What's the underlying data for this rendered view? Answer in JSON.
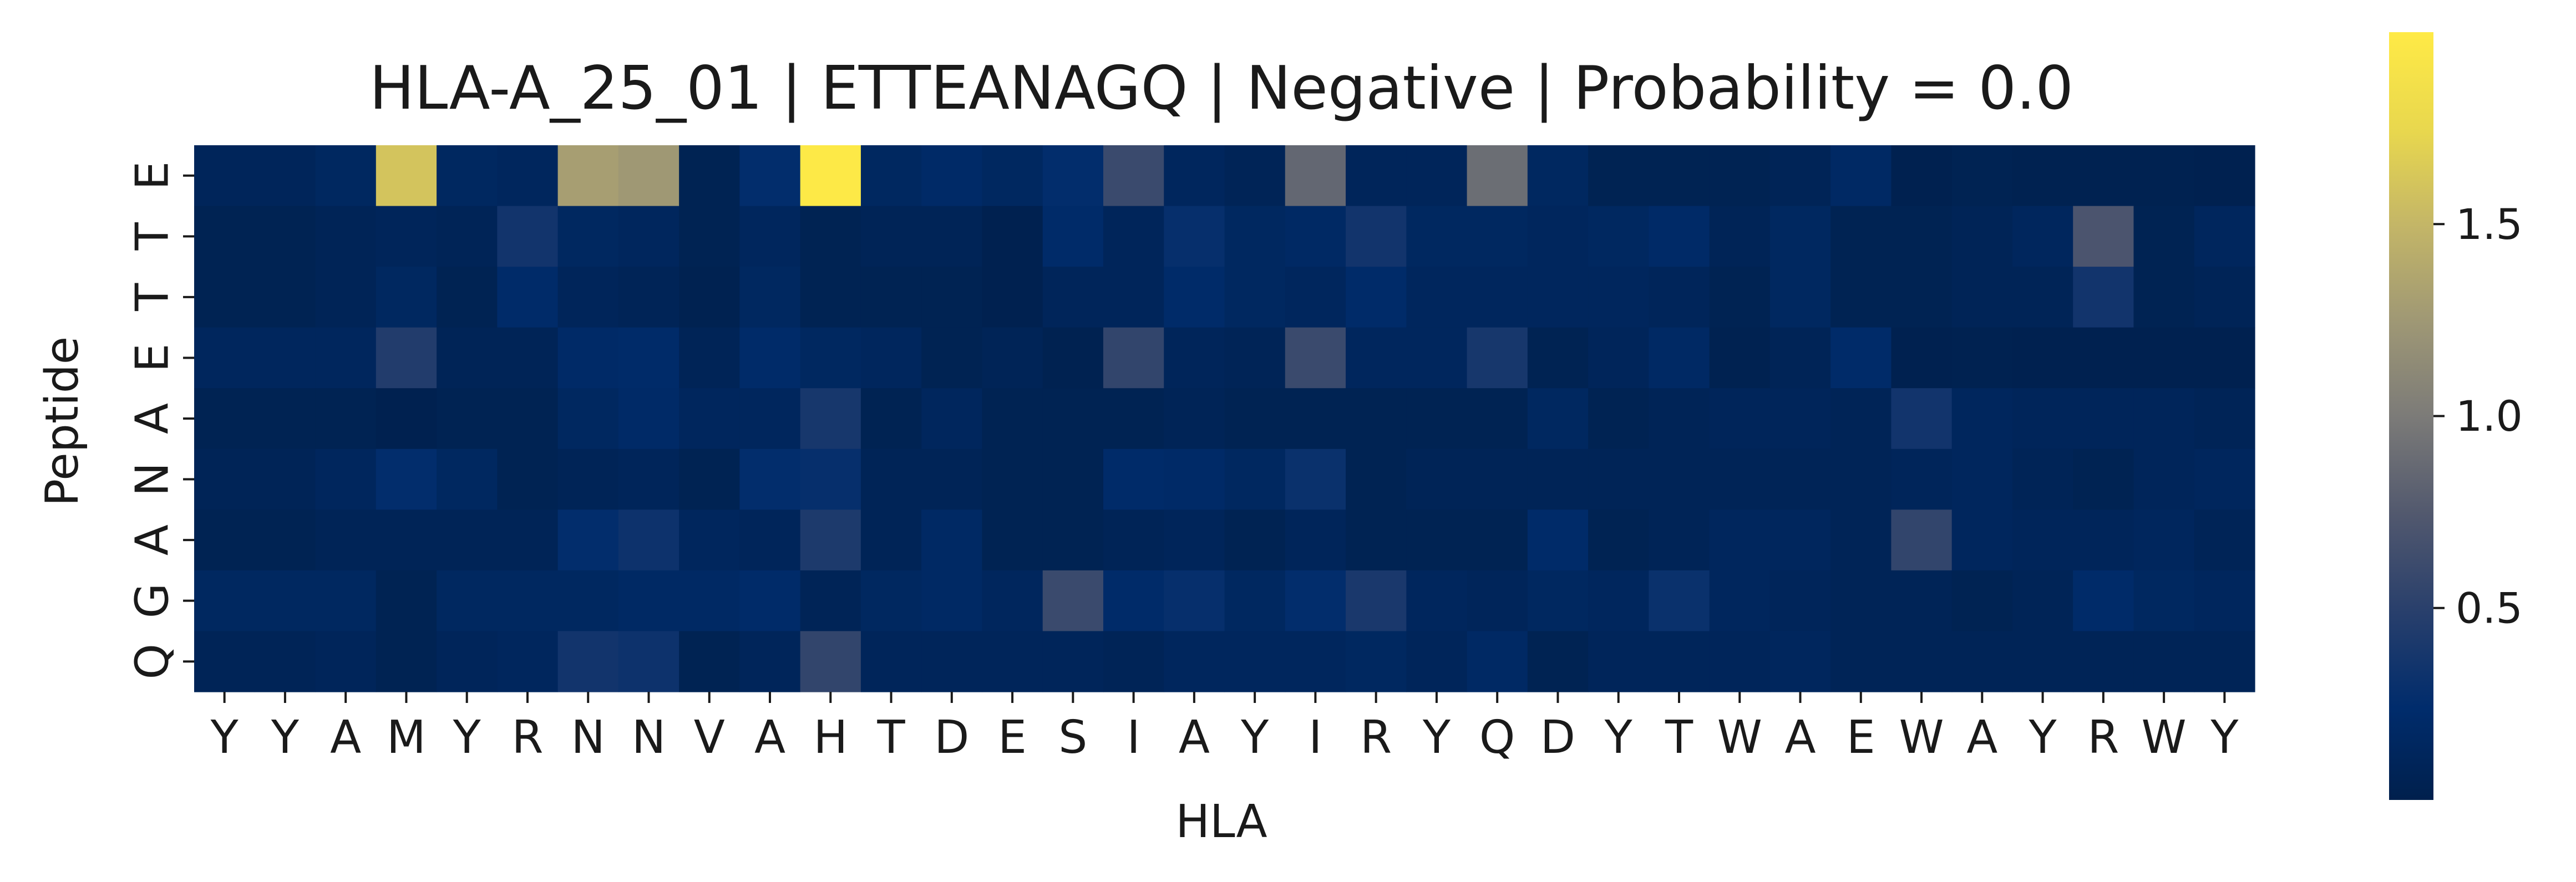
{
  "chart_data": {
    "type": "heatmap",
    "title": "HLA-A_25_01 | ETTEANAGQ | Negative | Probability = 0.0",
    "xlabel": "HLA",
    "ylabel": "Peptide",
    "x_categories": [
      "Y",
      "Y",
      "A",
      "M",
      "Y",
      "R",
      "N",
      "N",
      "V",
      "A",
      "H",
      "T",
      "D",
      "E",
      "S",
      "I",
      "A",
      "Y",
      "I",
      "R",
      "Y",
      "Q",
      "D",
      "Y",
      "T",
      "W",
      "A",
      "E",
      "W",
      "A",
      "Y",
      "R",
      "W",
      "Y"
    ],
    "y_categories": [
      "E",
      "T",
      "T",
      "E",
      "A",
      "N",
      "A",
      "G",
      "Q"
    ],
    "values": [
      [
        0.1,
        0.1,
        0.15,
        1.6,
        0.15,
        0.12,
        1.3,
        1.25,
        0.05,
        0.25,
        1.98,
        0.15,
        0.2,
        0.15,
        0.25,
        0.6,
        0.12,
        0.08,
        0.85,
        0.1,
        0.1,
        0.9,
        0.15,
        0.05,
        0.05,
        0.05,
        0.08,
        0.18,
        0.02,
        0.05,
        0.03,
        0.03,
        0.03,
        0.02
      ],
      [
        0.05,
        0.05,
        0.08,
        0.1,
        0.08,
        0.35,
        0.15,
        0.12,
        0.05,
        0.12,
        0.05,
        0.08,
        0.08,
        0.02,
        0.22,
        0.1,
        0.28,
        0.15,
        0.18,
        0.35,
        0.15,
        0.15,
        0.12,
        0.15,
        0.2,
        0.08,
        0.15,
        0.05,
        0.05,
        0.08,
        0.12,
        0.7,
        0.05,
        0.12
      ],
      [
        0.05,
        0.05,
        0.08,
        0.15,
        0.05,
        0.22,
        0.1,
        0.08,
        0.03,
        0.15,
        0.05,
        0.05,
        0.05,
        0.02,
        0.1,
        0.1,
        0.22,
        0.15,
        0.12,
        0.22,
        0.12,
        0.12,
        0.12,
        0.12,
        0.1,
        0.05,
        0.15,
        0.05,
        0.05,
        0.08,
        0.08,
        0.35,
        0.05,
        0.08
      ],
      [
        0.12,
        0.12,
        0.12,
        0.45,
        0.08,
        0.08,
        0.2,
        0.22,
        0.08,
        0.22,
        0.15,
        0.12,
        0.05,
        0.08,
        0.03,
        0.55,
        0.1,
        0.08,
        0.6,
        0.12,
        0.12,
        0.38,
        0.05,
        0.1,
        0.18,
        0.03,
        0.08,
        0.22,
        0.02,
        0.03,
        0.02,
        0.02,
        0.02,
        0.02
      ],
      [
        0.05,
        0.05,
        0.05,
        0.02,
        0.05,
        0.05,
        0.15,
        0.2,
        0.12,
        0.12,
        0.38,
        0.05,
        0.12,
        0.05,
        0.05,
        0.05,
        0.08,
        0.05,
        0.05,
        0.05,
        0.05,
        0.05,
        0.15,
        0.05,
        0.08,
        0.1,
        0.1,
        0.08,
        0.35,
        0.12,
        0.1,
        0.1,
        0.1,
        0.08
      ],
      [
        0.08,
        0.08,
        0.12,
        0.25,
        0.15,
        0.05,
        0.08,
        0.1,
        0.05,
        0.25,
        0.28,
        0.08,
        0.08,
        0.05,
        0.05,
        0.22,
        0.2,
        0.15,
        0.3,
        0.05,
        0.08,
        0.08,
        0.08,
        0.08,
        0.08,
        0.08,
        0.08,
        0.08,
        0.1,
        0.12,
        0.08,
        0.05,
        0.1,
        0.12
      ],
      [
        0.05,
        0.05,
        0.08,
        0.08,
        0.08,
        0.08,
        0.25,
        0.32,
        0.12,
        0.1,
        0.42,
        0.08,
        0.18,
        0.05,
        0.05,
        0.08,
        0.1,
        0.05,
        0.1,
        0.05,
        0.05,
        0.05,
        0.22,
        0.05,
        0.08,
        0.12,
        0.12,
        0.08,
        0.55,
        0.12,
        0.1,
        0.1,
        0.12,
        0.08
      ],
      [
        0.15,
        0.15,
        0.15,
        0.05,
        0.15,
        0.15,
        0.15,
        0.18,
        0.18,
        0.22,
        0.08,
        0.15,
        0.18,
        0.12,
        0.6,
        0.22,
        0.28,
        0.15,
        0.25,
        0.4,
        0.12,
        0.1,
        0.15,
        0.12,
        0.3,
        0.12,
        0.1,
        0.08,
        0.08,
        0.05,
        0.08,
        0.22,
        0.15,
        0.12
      ],
      [
        0.08,
        0.08,
        0.1,
        0.05,
        0.1,
        0.12,
        0.35,
        0.32,
        0.05,
        0.1,
        0.55,
        0.1,
        0.1,
        0.1,
        0.1,
        0.08,
        0.12,
        0.12,
        0.12,
        0.15,
        0.1,
        0.18,
        0.05,
        0.1,
        0.1,
        0.1,
        0.12,
        0.08,
        0.08,
        0.08,
        0.08,
        0.08,
        0.08,
        0.08
      ]
    ],
    "colormap": "cividis",
    "colorbar": {
      "range": [
        0.0,
        2.0
      ],
      "ticks": [
        0.5,
        1.0,
        1.5
      ]
    },
    "grid": false,
    "legend": "colorbar-right"
  }
}
